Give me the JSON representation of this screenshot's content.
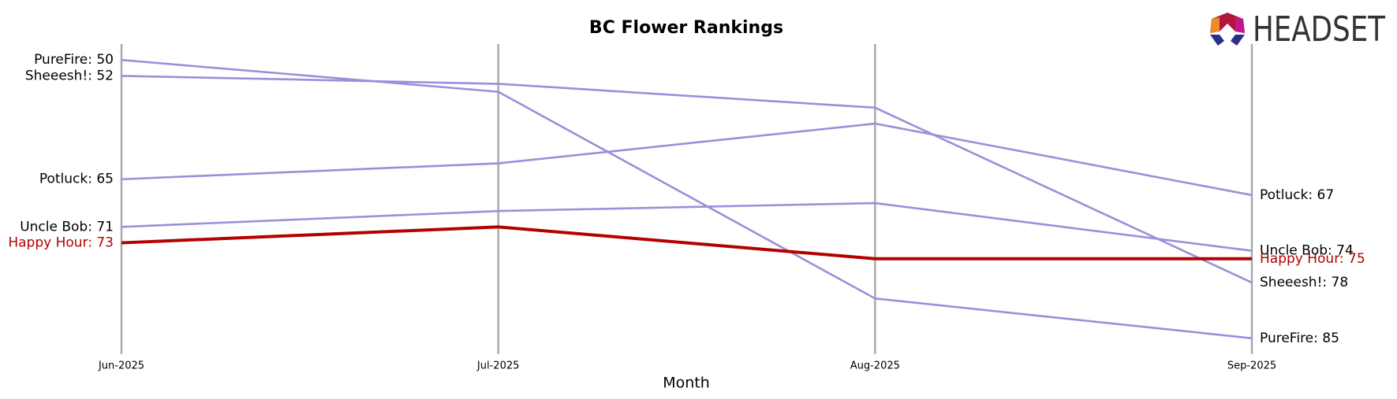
{
  "chart_data": {
    "type": "bump",
    "title": "BC Flower Rankings",
    "x_label": "Month",
    "logo": "HEADSET",
    "categories": [
      "Jun-2025",
      "Jul-2025",
      "Aug-2025",
      "Sep-2025"
    ],
    "ylim": [
      87,
      48
    ],
    "highlight": "Happy Hour",
    "series": [
      {
        "name": "PureFire",
        "color": "#9b8fd9",
        "values": [
          50,
          54,
          80,
          85
        ],
        "value_labels": [
          "PureFire: 50",
          null,
          null,
          "PureFire: 85"
        ]
      },
      {
        "name": "Sheeesh!",
        "color": "#9b8fd9",
        "values": [
          52,
          53,
          56,
          78
        ],
        "value_labels": [
          "Sheeesh!: 52",
          null,
          null,
          "Sheeesh!: 78"
        ]
      },
      {
        "name": "Potluck",
        "color": "#9b8fd9",
        "values": [
          65,
          63,
          58,
          67
        ],
        "value_labels": [
          "Potluck: 65",
          null,
          null,
          "Potluck: 67"
        ]
      },
      {
        "name": "Uncle Bob",
        "color": "#9b8fd9",
        "values": [
          71,
          69,
          68,
          74
        ],
        "value_labels": [
          "Uncle Bob: 71",
          null,
          null,
          "Uncle Bob: 74"
        ]
      },
      {
        "name": "Happy Hour",
        "color": "#b30000",
        "values": [
          73,
          71,
          75,
          75
        ],
        "value_labels": [
          "Happy Hour: 73",
          null,
          null,
          "Happy Hour: 75"
        ]
      }
    ]
  }
}
